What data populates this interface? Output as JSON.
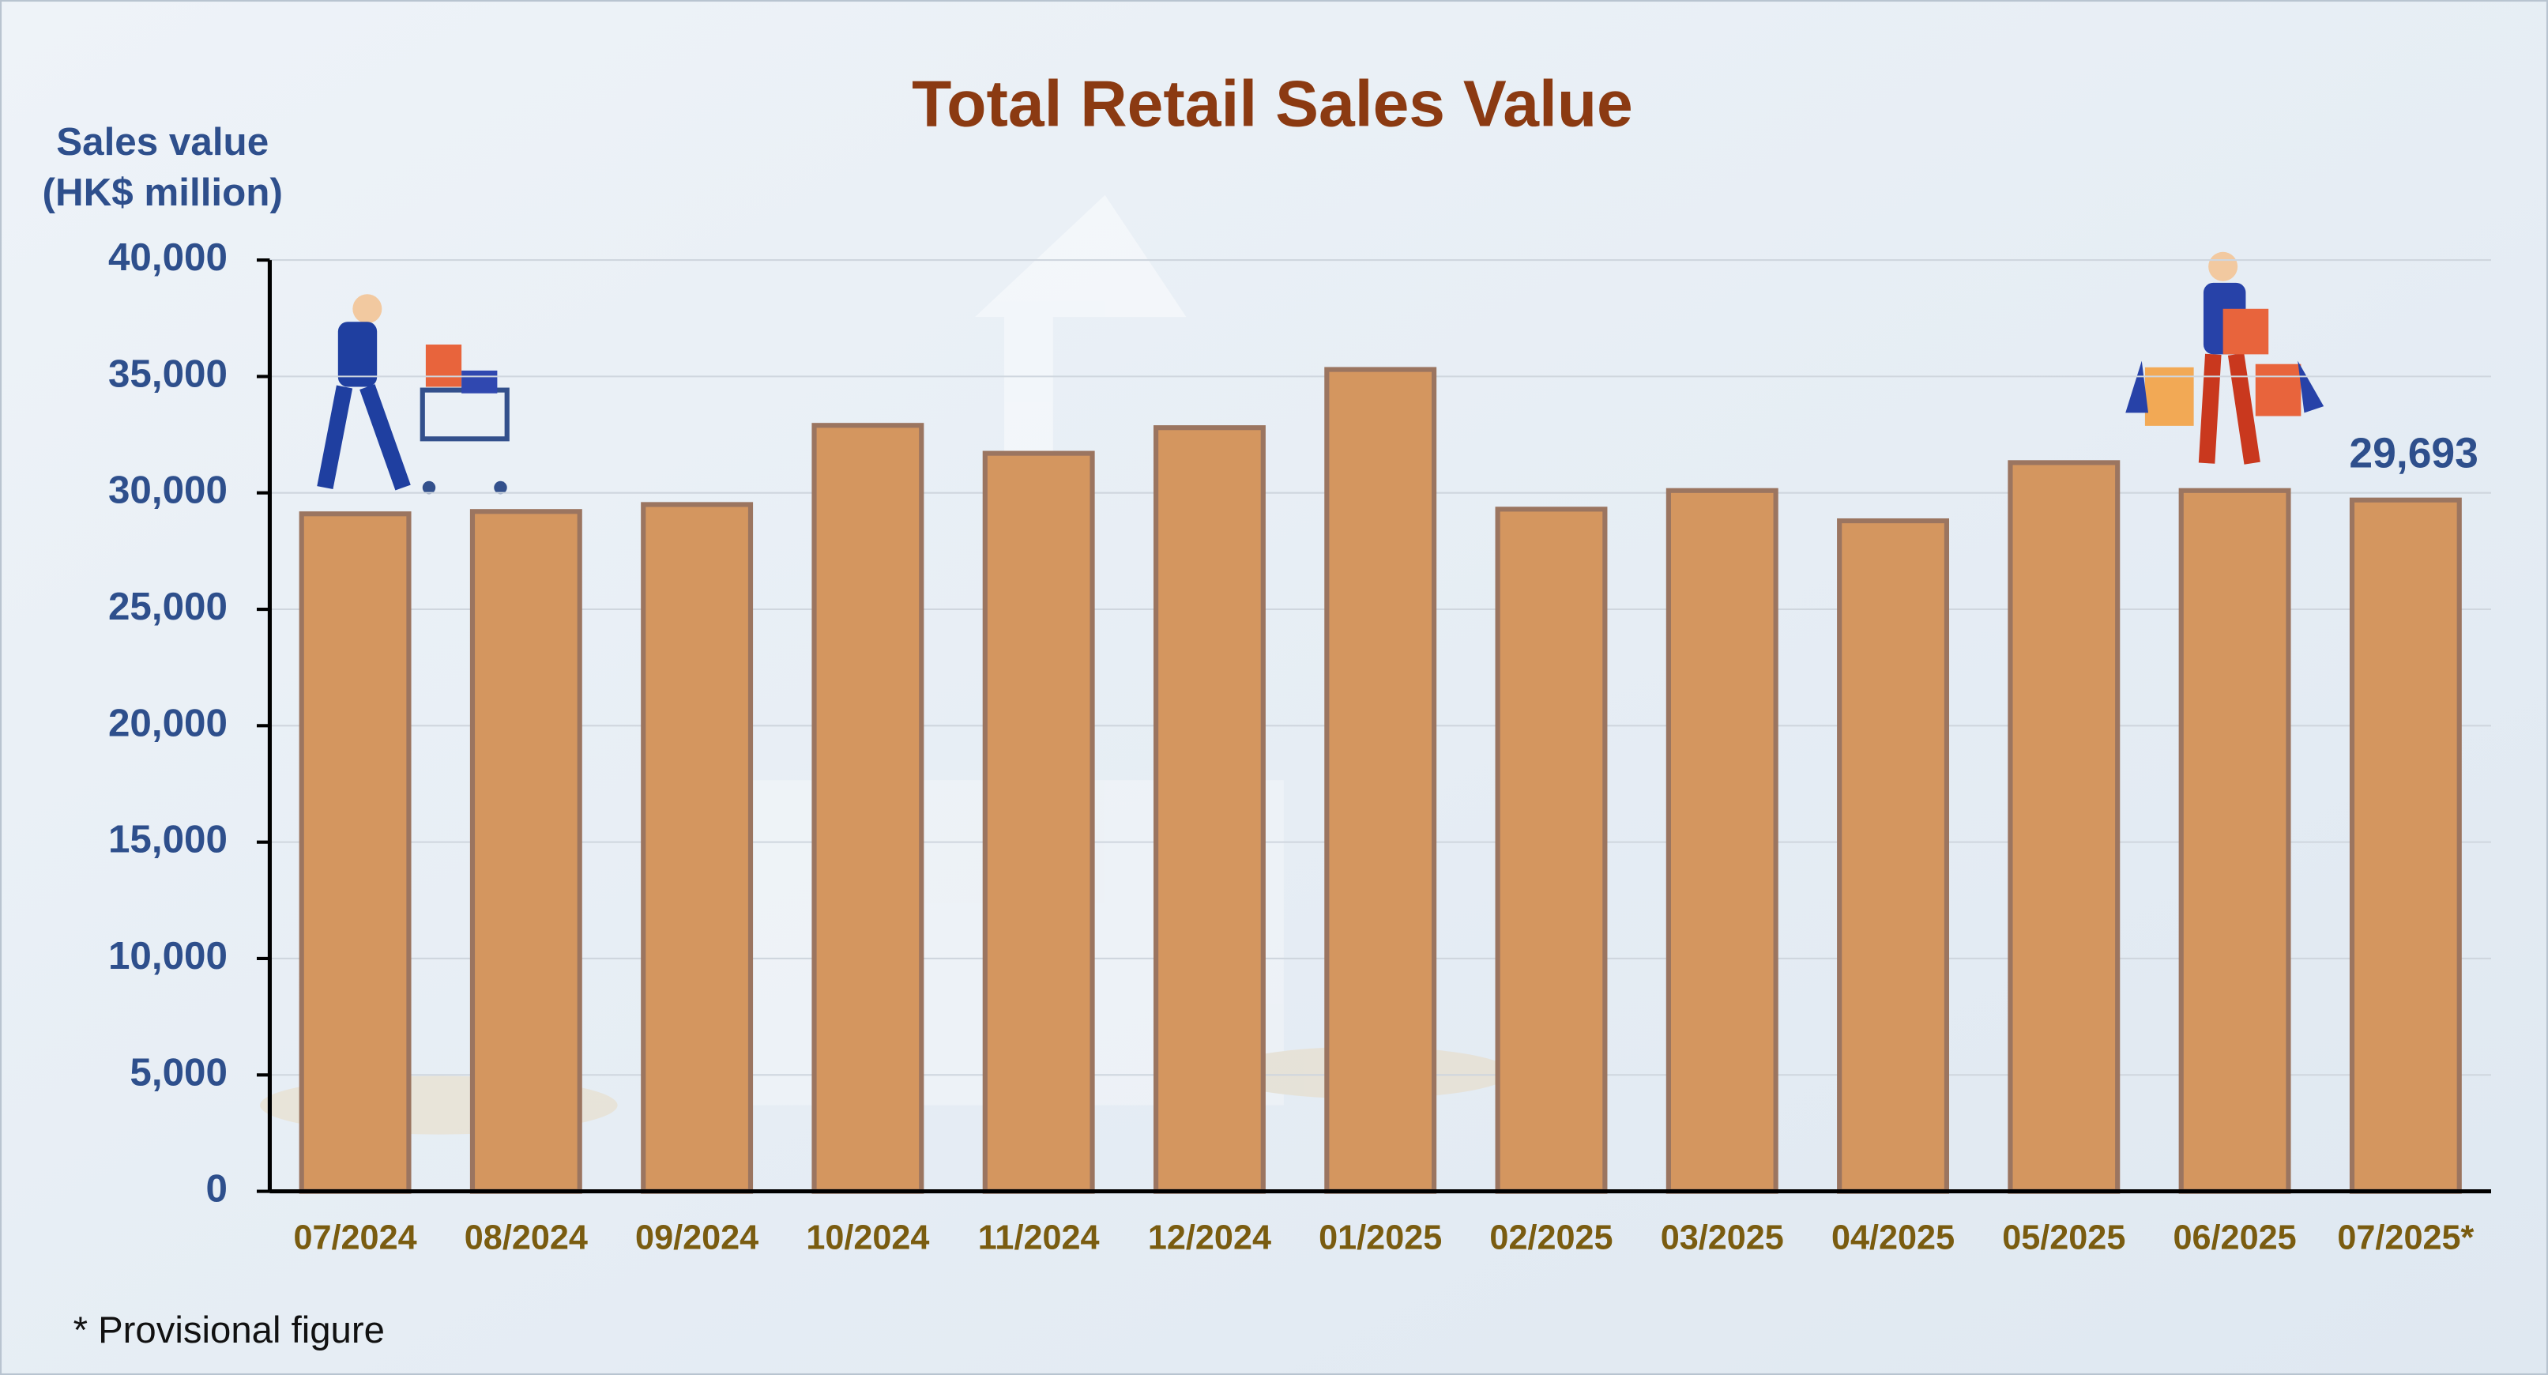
{
  "chart_data": {
    "type": "bar",
    "title": "Total Retail Sales Value",
    "y_label": [
      "Sales value",
      "(HK$ million)"
    ],
    "footnote": "* Provisional figure",
    "categories": [
      "07/2024",
      "08/2024",
      "09/2024",
      "10/2024",
      "11/2024",
      "12/2024",
      "01/2025",
      "02/2025",
      "03/2025",
      "04/2025",
      "05/2025",
      "06/2025",
      "07/2025*"
    ],
    "values": [
      29100,
      29200,
      29500,
      32900,
      31700,
      32800,
      35300,
      29300,
      30100,
      28800,
      31300,
      30100,
      29693
    ],
    "value_labels": [
      null,
      null,
      null,
      null,
      null,
      null,
      null,
      null,
      null,
      null,
      null,
      null,
      "29,693"
    ],
    "color": "#d4965f",
    "ylim": [
      0,
      40000
    ],
    "yticks": [
      0,
      {
        "value": 5000,
        "label": "5,000"
      },
      {
        "value": 10000,
        "label": "10,000"
      },
      {
        "value": 15000,
        "label": "15,000"
      },
      {
        "value": 20000,
        "label": "20,000"
      },
      {
        "value": 25000,
        "label": "25,000"
      },
      {
        "value": 30000,
        "label": "30,000"
      },
      {
        "value": 35000,
        "label": "35,000"
      },
      {
        "value": 40000,
        "label": "40,000"
      }
    ],
    "grid": true
  }
}
